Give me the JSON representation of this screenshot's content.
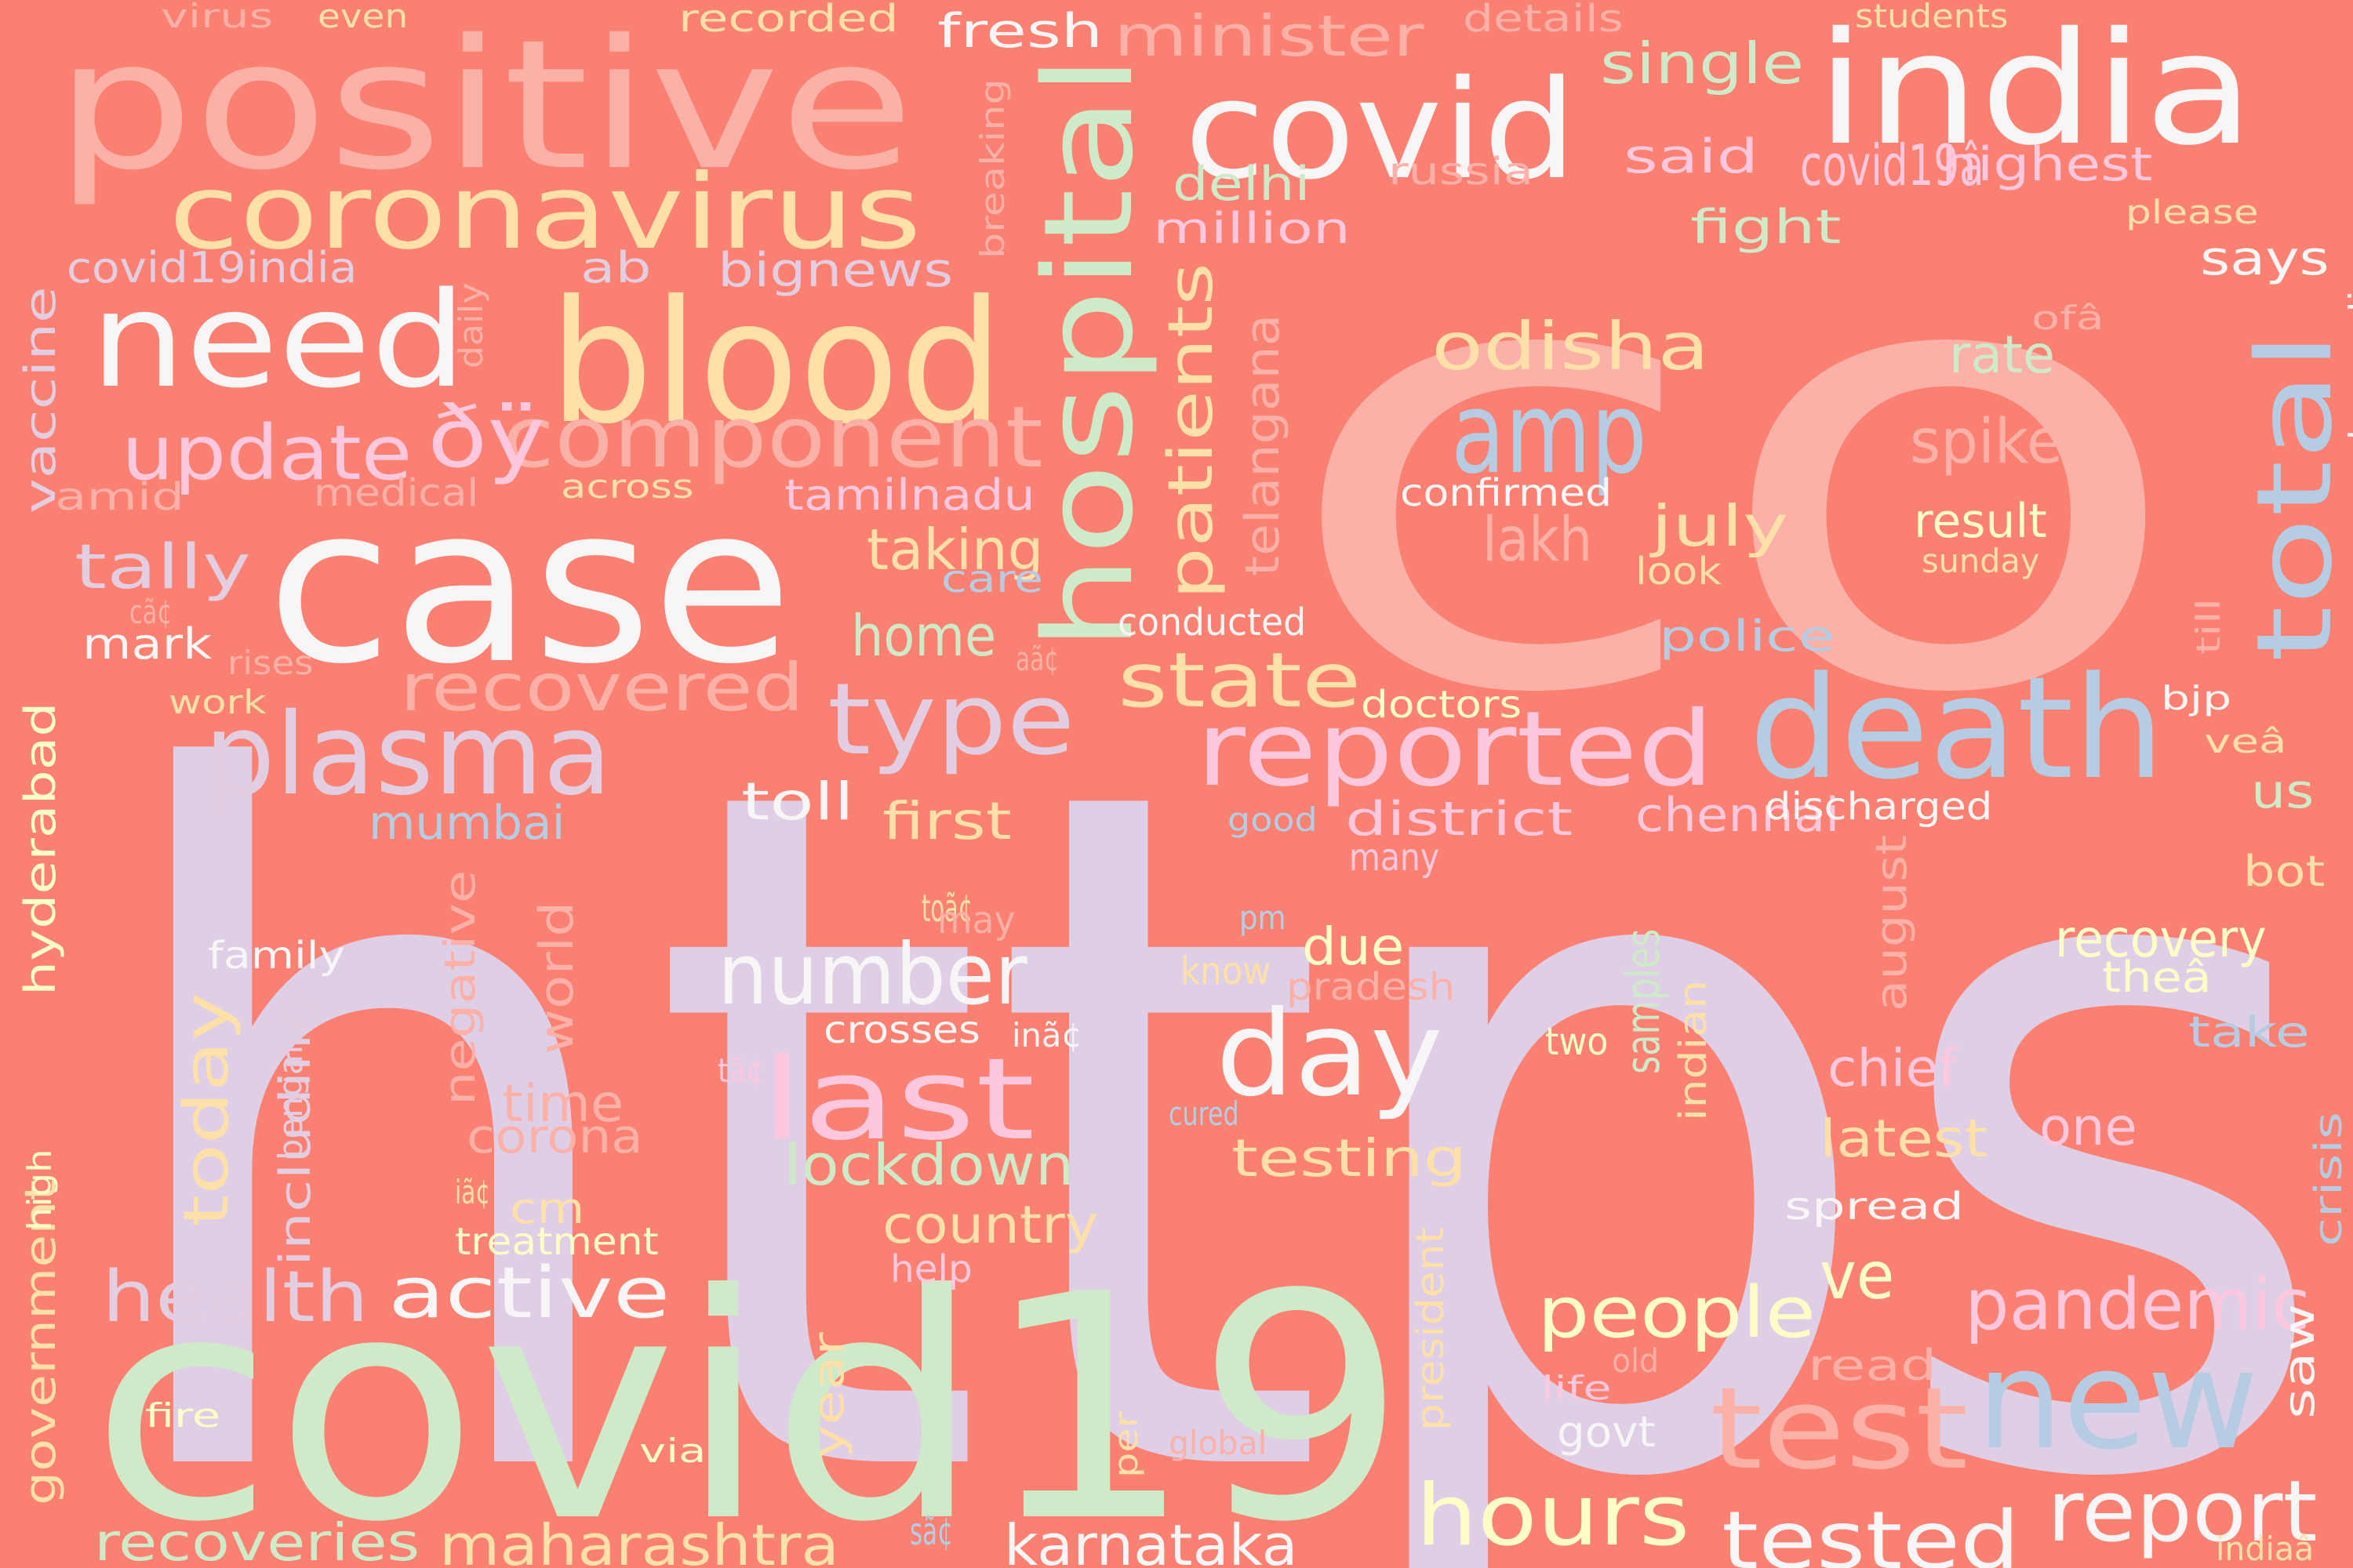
{
  "colors": {
    "background": "#fa8072",
    "palette": [
      "#dfcfe6",
      "#fcb1a8",
      "#cfeac8",
      "#f7f5f5",
      "#fee0a8",
      "#b5cce2",
      "#fdc8dd",
      "#fdfdc8",
      "#e3cde1"
    ]
  },
  "words": [
    {
      "text": "https",
      "color": "#dfcfe6"
    },
    {
      "text": "co",
      "color": "#fcb1a8"
    },
    {
      "text": "covid19",
      "color": "#cfeac8"
    },
    {
      "text": "case",
      "color": "#f7f5f5"
    },
    {
      "text": "positive",
      "color": "#fcb1a8"
    },
    {
      "text": "india",
      "color": "#f7f5f5"
    },
    {
      "text": "blood",
      "color": "#fee0a8"
    },
    {
      "text": "death",
      "color": "#b5cce2"
    },
    {
      "text": "covid",
      "color": "#f7f5f5"
    },
    {
      "text": "need",
      "color": "#f7f5f5"
    },
    {
      "text": "coronavirus",
      "color": "#fee0a8"
    },
    {
      "text": "new",
      "color": "#b5cce2"
    },
    {
      "text": "hospital",
      "color": "#cfeac8"
    },
    {
      "text": "plasma",
      "color": "#e3cde1"
    },
    {
      "text": "reported",
      "color": "#fdc8dd"
    },
    {
      "text": "amp",
      "color": "#b5cce2"
    },
    {
      "text": "day",
      "color": "#f7f5f5"
    },
    {
      "text": "total",
      "color": "#b5cce2"
    },
    {
      "text": "last",
      "color": "#fdc8dd"
    },
    {
      "text": "component",
      "color": "#fcb1a8"
    },
    {
      "text": "type",
      "color": "#e3cde1"
    },
    {
      "text": "test",
      "color": "#fcb1a8"
    },
    {
      "text": "number",
      "color": "#f7f5f5"
    },
    {
      "text": "update",
      "color": "#fdc8dd"
    },
    {
      "text": "ðÿ",
      "color": "#fdc8dd"
    },
    {
      "text": "report",
      "color": "#f7f5f5"
    },
    {
      "text": "hours",
      "color": "#fdfdc8"
    },
    {
      "text": "tested",
      "color": "#f7f5f5"
    },
    {
      "text": "pandemic",
      "color": "#fdc8dd"
    },
    {
      "text": "active",
      "color": "#f7f5f5"
    },
    {
      "text": "health",
      "color": "#e3cde1"
    },
    {
      "text": "people",
      "color": "#fdfdc8"
    },
    {
      "text": "state",
      "color": "#fee0a8"
    },
    {
      "text": "patients",
      "color": "#fee0a8"
    },
    {
      "text": "odisha",
      "color": "#fee0a8"
    },
    {
      "text": "recovered",
      "color": "#fcb1a8"
    },
    {
      "text": "today",
      "color": "#fee0a8"
    },
    {
      "text": "maharashtra",
      "color": "#fee0a8"
    },
    {
      "text": "ve",
      "color": "#fdfdc8"
    },
    {
      "text": "karnataka",
      "color": "#f7f5f5"
    },
    {
      "text": "tally",
      "color": "#e3cde1"
    },
    {
      "text": "lockdown",
      "color": "#cfeac8"
    },
    {
      "text": "covid19â",
      "color": "#fdc8dd"
    },
    {
      "text": "spike",
      "color": "#fcb1a8"
    },
    {
      "text": "taking",
      "color": "#fee0a8"
    },
    {
      "text": "home",
      "color": "#cfeac8"
    },
    {
      "text": "country",
      "color": "#fee0a8"
    },
    {
      "text": "testing",
      "color": "#fee0a8"
    },
    {
      "text": "recoveries",
      "color": "#cfeac8"
    },
    {
      "text": "minister",
      "color": "#fcb1a8"
    },
    {
      "text": "single",
      "color": "#cfeac8"
    },
    {
      "text": "highest",
      "color": "#fdc8dd"
    },
    {
      "text": "first",
      "color": "#fee0a8"
    },
    {
      "text": "bignews",
      "color": "#e3cde1"
    },
    {
      "text": "covid19india",
      "color": "#e3cde1"
    },
    {
      "text": "vaccine",
      "color": "#e3cde1"
    },
    {
      "text": "including",
      "color": "#e3cde1"
    },
    {
      "text": "lakh",
      "color": "#fcb1a8"
    },
    {
      "text": "july",
      "color": "#fee0a8"
    },
    {
      "text": "result",
      "color": "#fdfdc8"
    },
    {
      "text": "rate",
      "color": "#cfeac8"
    },
    {
      "text": "recovery",
      "color": "#fdfdc8"
    },
    {
      "text": "latest",
      "color": "#fee0a8"
    },
    {
      "text": "one",
      "color": "#fdc8dd"
    },
    {
      "text": "chief",
      "color": "#fdc8dd"
    },
    {
      "text": "samples",
      "color": "#cfeac8"
    },
    {
      "text": "district",
      "color": "#fdc8dd"
    },
    {
      "text": "chennai",
      "color": "#fdc8dd"
    },
    {
      "text": "toll",
      "color": "#f7f5f5"
    },
    {
      "text": "mumbai",
      "color": "#b5cce2"
    },
    {
      "text": "due",
      "color": "#fdfdc8"
    },
    {
      "text": "time",
      "color": "#fcb1a8"
    },
    {
      "text": "corona",
      "color": "#fcb1a8"
    },
    {
      "text": "world",
      "color": "#fcb1a8"
    },
    {
      "text": "negative",
      "color": "#fcb1a8"
    },
    {
      "text": "telangana",
      "color": "#fcb1a8"
    },
    {
      "text": "hyderabad",
      "color": "#fdfdc8"
    },
    {
      "text": "government",
      "color": "#fee0a8"
    },
    {
      "text": "fresh",
      "color": "#f7f5f5"
    },
    {
      "text": "delhi",
      "color": "#cfeac8"
    },
    {
      "text": "million",
      "color": "#fdc8dd"
    },
    {
      "text": "fight",
      "color": "#cfeac8"
    },
    {
      "text": "said",
      "color": "#fdc8dd"
    },
    {
      "text": "says",
      "color": "#f7f5f5"
    },
    {
      "text": "ab",
      "color": "#e3cde1"
    },
    {
      "text": "mark",
      "color": "#f7f5f5"
    },
    {
      "text": "tamilnadu",
      "color": "#fdc8dd"
    },
    {
      "text": "police",
      "color": "#b5cce2"
    },
    {
      "text": "august",
      "color": "#fcb1a8"
    },
    {
      "text": "theâ",
      "color": "#fdfdc8"
    },
    {
      "text": "take",
      "color": "#b5cce2"
    },
    {
      "text": "us",
      "color": "#cfeac8"
    },
    {
      "text": "bot",
      "color": "#fee0a8"
    },
    {
      "text": "cm",
      "color": "#fee0a8"
    },
    {
      "text": "year",
      "color": "#fee0a8"
    },
    {
      "text": "saw",
      "color": "#f7f5f5"
    },
    {
      "text": "read",
      "color": "#fcb1a8"
    },
    {
      "text": "govt",
      "color": "#f7f5f5"
    },
    {
      "text": "family",
      "color": "#f7f5f5"
    },
    {
      "text": "amid",
      "color": "#fcb1a8"
    },
    {
      "text": "medical",
      "color": "#fcb1a8"
    },
    {
      "text": "confirmed",
      "color": "#f7f5f5"
    },
    {
      "text": "conducted",
      "color": "#f7f5f5"
    },
    {
      "text": "doctors",
      "color": "#fdfdc8"
    },
    {
      "text": "discharged",
      "color": "#f7f5f5"
    },
    {
      "text": "pradesh",
      "color": "#fcb1a8"
    },
    {
      "text": "crosses",
      "color": "#f7f5f5"
    },
    {
      "text": "bengaluru",
      "color": "#e3cde1"
    },
    {
      "text": "treatment",
      "color": "#fdfdc8"
    },
    {
      "text": "spread",
      "color": "#f7f5f5"
    },
    {
      "text": "indian",
      "color": "#fee0a8"
    },
    {
      "text": "crisis",
      "color": "#b5cce2"
    },
    {
      "text": "president",
      "color": "#fee0a8"
    },
    {
      "text": "narendramodi",
      "color": "#f7f5f5"
    },
    {
      "text": "virus",
      "color": "#fcb1a8"
    },
    {
      "text": "even",
      "color": "#fee0a8"
    },
    {
      "text": "recorded",
      "color": "#fee0a8"
    },
    {
      "text": "details",
      "color": "#fcb1a8"
    },
    {
      "text": "students",
      "color": "#fee0a8"
    },
    {
      "text": "russia",
      "color": "#fcb1a8"
    },
    {
      "text": "please",
      "color": "#fee0a8"
    },
    {
      "text": "ofâ",
      "color": "#fcb1a8"
    },
    {
      "text": "daily",
      "color": "#fcb1a8"
    },
    {
      "text": "breaking",
      "color": "#fcb1a8"
    },
    {
      "text": "across",
      "color": "#fee0a8"
    },
    {
      "text": "care",
      "color": "#b5cce2"
    },
    {
      "text": "look",
      "color": "#fee0a8"
    },
    {
      "text": "sunday",
      "color": "#fee0a8"
    },
    {
      "text": "till",
      "color": "#fcb1a8"
    },
    {
      "text": "bjp",
      "color": "#f7f5f5"
    },
    {
      "text": "veâ",
      "color": "#fee0a8"
    },
    {
      "text": "cã¢",
      "color": "#fcb1a8"
    },
    {
      "text": "rises",
      "color": "#fcb1a8"
    },
    {
      "text": "work",
      "color": "#fee0a8"
    },
    {
      "text": "aã¢",
      "color": "#fcb1a8"
    },
    {
      "text": "good",
      "color": "#b5cce2"
    },
    {
      "text": "many",
      "color": "#fdc8dd"
    },
    {
      "text": "toã¢",
      "color": "#fee0a8"
    },
    {
      "text": "may",
      "color": "#fcb1a8"
    },
    {
      "text": "pm",
      "color": "#b5cce2"
    },
    {
      "text": "know",
      "color": "#fee0a8"
    },
    {
      "text": "inã¢",
      "color": "#f7f5f5"
    },
    {
      "text": "two",
      "color": "#fdfdc8"
    },
    {
      "text": "tã¢",
      "color": "#fdc8dd"
    },
    {
      "text": "cured",
      "color": "#b5cce2"
    },
    {
      "text": "high",
      "color": "#fdfdc8"
    },
    {
      "text": "iã¢",
      "color": "#fee0a8"
    },
    {
      "text": "help",
      "color": "#fdc8dd"
    },
    {
      "text": "fire",
      "color": "#fdfdc8"
    },
    {
      "text": "via",
      "color": "#fdfdc8"
    },
    {
      "text": "per",
      "color": "#fee0a8"
    },
    {
      "text": "global",
      "color": "#fcb1a8"
    },
    {
      "text": "life",
      "color": "#fdc8dd"
    },
    {
      "text": "old",
      "color": "#fcb1a8"
    },
    {
      "text": "sã¢",
      "color": "#b5cce2"
    },
    {
      "text": "indiaâ",
      "color": "#fee0a8"
    }
  ]
}
